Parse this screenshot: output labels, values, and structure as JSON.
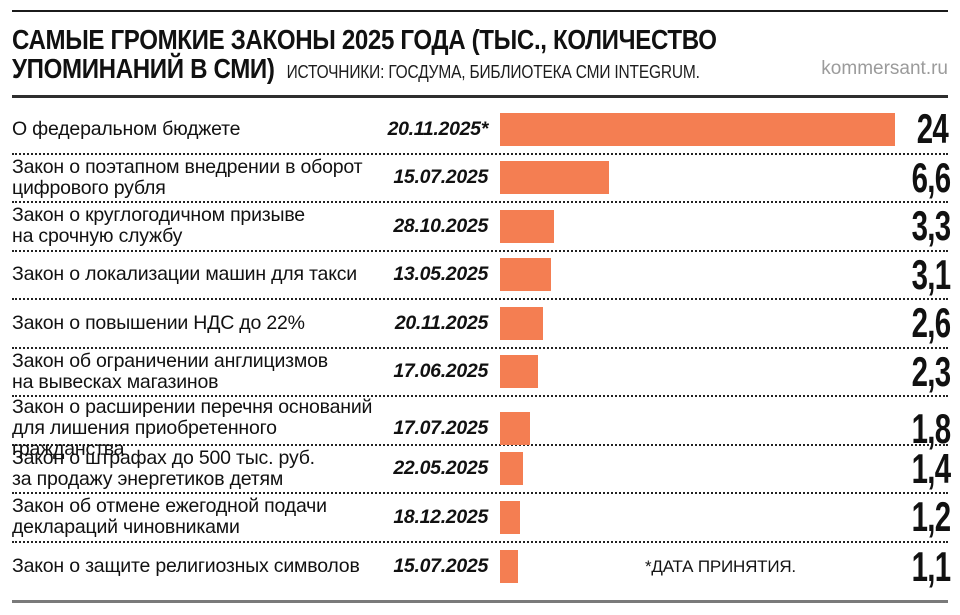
{
  "header": {
    "title_line1": "САМЫЕ ГРОМКИЕ ЗАКОНЫ 2025 ГОДА (ТЫС., КОЛИЧЕСТВО",
    "title_line2": "УПОМИНАНИЙ В СМИ)",
    "sources": "ИСТОЧНИКИ: ГОСДУМА, БИБЛИОТЕКА СМИ INTEGRUM.",
    "watermark": "kommersant.ru"
  },
  "footnote": "*ДАТА ПРИНЯТИЯ.",
  "colors": {
    "bar": "#F47E52",
    "text": "#111111",
    "watermark": "#9B9B9B",
    "bottom_rule": "#7A7A7A"
  },
  "chart_data": {
    "type": "bar",
    "orientation": "horizontal",
    "title": "САМЫЕ ГРОМКИЕ ЗАКОНЫ 2025 ГОДА (ТЫС., КОЛИЧЕСТВО УПОМИНАНИЙ В СМИ)",
    "sources": "ИСТОЧНИКИ: ГОСДУМА, БИБЛИОТЕКА СМИ INTEGRUM.",
    "categories": [
      "О федеральном бюджете",
      "Закон о поэтапном внедрении в оборот цифрового рубля",
      "Закон о круглогодичном призыве на срочную службу",
      "Закон о локализации машин для такси",
      "Закон о повышении НДС до 22%",
      "Закон об ограничении англицизмов на вывесках магазинов",
      "Закон о расширении перечня оснований для лишения приобретенного гражданства",
      "Закон о штрафах до 500 тыс. руб. за продажу энергетиков детям",
      "Закон об отмене ежегодной подачи деклараций чиновниками",
      "Закон о защите религиозных символов"
    ],
    "dates": [
      "20.11.2025*",
      "15.07.2025",
      "28.10.2025",
      "13.05.2025",
      "20.11.2025",
      "17.06.2025",
      "17.07.2025",
      "22.05.2025",
      "18.12.2025",
      "15.07.2025"
    ],
    "values": [
      24,
      6.6,
      3.3,
      3.1,
      2.6,
      2.3,
      1.8,
      1.4,
      1.2,
      1.1
    ],
    "value_labels": [
      "24",
      "6,6",
      "3,3",
      "3,1",
      "2,6",
      "2,3",
      "1,8",
      "1,4",
      "1,2",
      "1,1"
    ],
    "xlim": [
      0,
      24
    ],
    "grid": false,
    "legend": false,
    "footnote": "*ДАТА ПРИНЯТИЯ."
  },
  "rows": [
    {
      "label": "О федеральном бюджете",
      "date": "20.11.2025*",
      "value": "24"
    },
    {
      "label": "Закон о поэтапном внедрении в оборот\nцифрового рубля",
      "date": "15.07.2025",
      "value": "6,6"
    },
    {
      "label": "Закон о круглогодичном призыве\nна срочную службу",
      "date": "28.10.2025",
      "value": "3,3"
    },
    {
      "label": "Закон о локализации машин для такси",
      "date": "13.05.2025",
      "value": "3,1"
    },
    {
      "label": "Закон о повышении НДС до 22%",
      "date": "20.11.2025",
      "value": "2,6"
    },
    {
      "label": "Закон об ограничении англицизмов\nна вывесках магазинов",
      "date": "17.06.2025",
      "value": "2,3"
    },
    {
      "label": "Закон о расширении перечня оснований\nдля лишения приобретенного гражданства",
      "date": "17.07.2025",
      "value": "1,8"
    },
    {
      "label": "Закон о штрафах до 500 тыс. руб.\nза продажу энергетиков детям",
      "date": "22.05.2025",
      "value": "1,4"
    },
    {
      "label": "Закон об отмене ежегодной подачи\nдеклараций чиновниками",
      "date": "18.12.2025",
      "value": "1,2"
    },
    {
      "label": "Закон о защите религиозных символов",
      "date": "15.07.2025",
      "value": "1,1"
    }
  ]
}
